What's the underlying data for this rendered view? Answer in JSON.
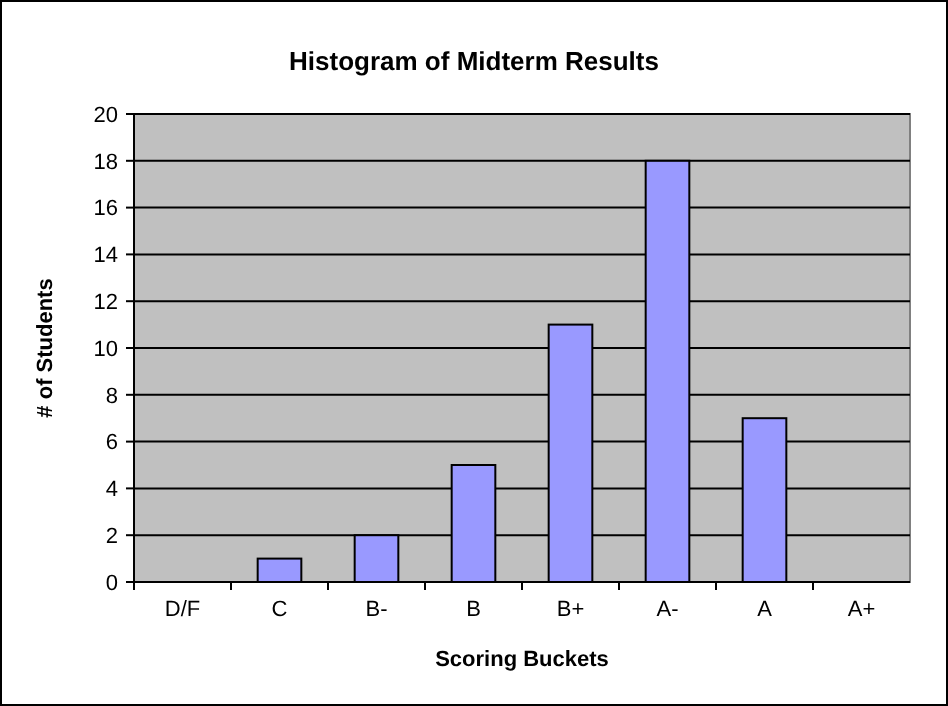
{
  "chart_data": {
    "type": "bar",
    "title": "Histogram of Midterm Results",
    "xlabel": "Scoring Buckets",
    "ylabel": "# of Students",
    "categories": [
      "D/F",
      "C",
      "B-",
      "B",
      "B+",
      "A-",
      "A",
      "A+"
    ],
    "values": [
      0,
      1,
      2,
      5,
      11,
      18,
      7,
      0
    ],
    "color": "#9999ff",
    "ylim": [
      0,
      20
    ],
    "yticks": [
      0,
      2,
      4,
      6,
      8,
      10,
      12,
      14,
      16,
      18,
      20
    ],
    "grid": "y"
  }
}
